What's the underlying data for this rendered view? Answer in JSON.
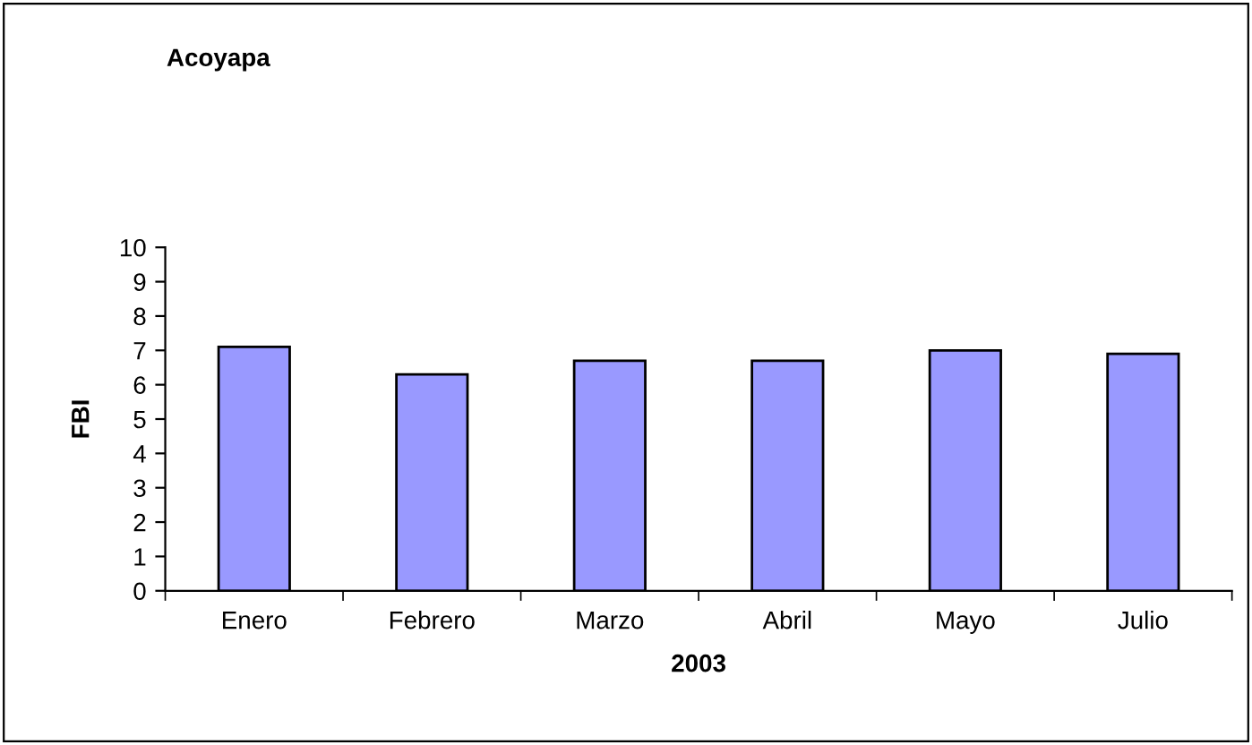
{
  "chart_data": {
    "type": "bar",
    "title": "Acoyapa",
    "xlabel": "2003",
    "ylabel": "FBI",
    "categories": [
      "Enero",
      "Febrero",
      "Marzo",
      "Abril",
      "Mayo",
      "Julio"
    ],
    "values": [
      7.1,
      6.3,
      6.7,
      6.7,
      7.0,
      6.9
    ],
    "color": "#9999ff",
    "ylim": [
      0,
      10
    ],
    "yticks": [
      0,
      1,
      2,
      3,
      4,
      5,
      6,
      7,
      8,
      9,
      10
    ],
    "grid": false,
    "legend": false
  }
}
